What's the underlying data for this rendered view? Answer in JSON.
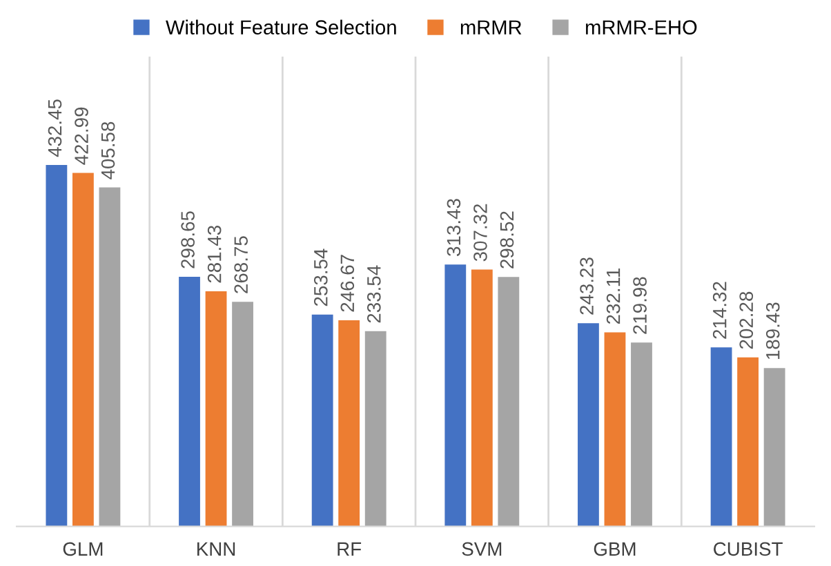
{
  "chart_data": {
    "type": "bar",
    "categories": [
      "GLM",
      "KNN",
      "RF",
      "SVM",
      "GBM",
      "CUBIST"
    ],
    "series": [
      {
        "name": "Without Feature Selection",
        "color": "#4472c4",
        "values": [
          432.45,
          298.65,
          253.54,
          313.43,
          243.23,
          214.32
        ]
      },
      {
        "name": "mRMR",
        "color": "#ed7d31",
        "values": [
          422.99,
          281.43,
          246.67,
          307.32,
          232.11,
          202.28
        ]
      },
      {
        "name": "mRMR-EHO",
        "color": "#a5a5a5",
        "values": [
          405.58,
          268.75,
          233.54,
          298.52,
          219.98,
          189.43
        ]
      }
    ],
    "data_labels": true,
    "legend": "top",
    "grid": false
  }
}
